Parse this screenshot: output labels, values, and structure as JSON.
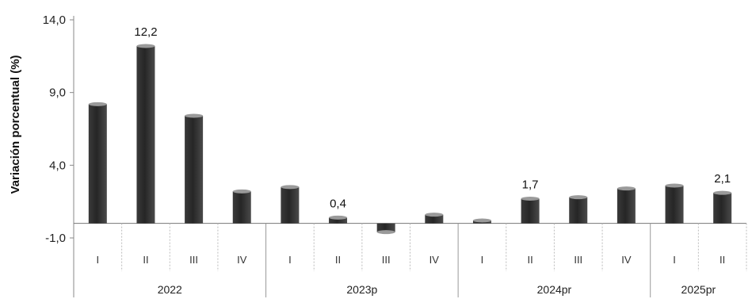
{
  "chart_data": {
    "type": "bar",
    "ylabel": "Variación porcentual (%)",
    "ylim": [
      -1.0,
      14.0
    ],
    "yticks": [
      "14,0",
      "9,0",
      "4,0",
      "-1,0"
    ],
    "grid": false,
    "categories": [
      "I",
      "II",
      "III",
      "IV",
      "I",
      "II",
      "III",
      "IV",
      "I",
      "II",
      "III",
      "IV",
      "I",
      "II"
    ],
    "groups": [
      {
        "label": "2022",
        "count": 4
      },
      {
        "label": "2023p",
        "count": 4
      },
      {
        "label": "2024pr",
        "count": 4
      },
      {
        "label": "2025pr",
        "count": 2
      }
    ],
    "values": [
      8.2,
      12.2,
      7.4,
      2.2,
      2.5,
      0.4,
      -0.6,
      0.6,
      0.2,
      1.7,
      1.8,
      2.4,
      2.6,
      2.1
    ],
    "data_labels": [
      {
        "index": 1,
        "text": "12,2"
      },
      {
        "index": 5,
        "text": "0,4"
      },
      {
        "index": 9,
        "text": "1,7"
      },
      {
        "index": 13,
        "text": "2,1"
      }
    ],
    "colors": {
      "bar": "#2f2f2f",
      "bar_top": "#9a9a9a",
      "axis": "#888888"
    }
  }
}
